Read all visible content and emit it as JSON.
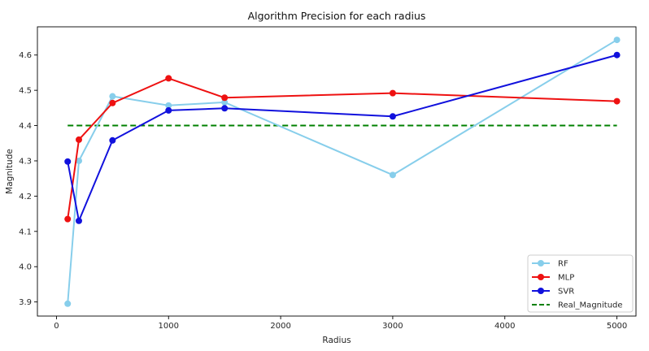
{
  "chart_data": {
    "type": "line",
    "title": "Algorithm Precision for each radius",
    "xlabel": "Radius",
    "ylabel": "Magnitude",
    "xlim": [
      -170,
      5170
    ],
    "ylim": [
      3.86,
      4.68
    ],
    "xticks": [
      0,
      1000,
      2000,
      3000,
      4000,
      5000
    ],
    "yticks": [
      3.9,
      4.0,
      4.1,
      4.2,
      4.3,
      4.4,
      4.5,
      4.6
    ],
    "x": [
      100,
      200,
      500,
      1000,
      1500,
      3000,
      5000
    ],
    "grid": false,
    "legend_position": "bottom-right",
    "series": [
      {
        "name": "RF",
        "color": "#87ceeb",
        "values": [
          3.895,
          4.3,
          4.483,
          4.457,
          4.466,
          4.26,
          4.643
        ]
      },
      {
        "name": "MLP",
        "color": "#ee1111",
        "values": [
          4.135,
          4.36,
          4.464,
          4.534,
          4.479,
          4.492,
          4.469
        ]
      },
      {
        "name": "SVR",
        "color": "#1111dd",
        "values": [
          4.298,
          4.13,
          4.358,
          4.443,
          4.449,
          4.426,
          4.6
        ]
      }
    ],
    "reference_line": {
      "name": "Real_Magnitude",
      "color": "#008000",
      "style": "dashed",
      "y": 4.4,
      "x_range": [
        100,
        5000
      ]
    }
  }
}
